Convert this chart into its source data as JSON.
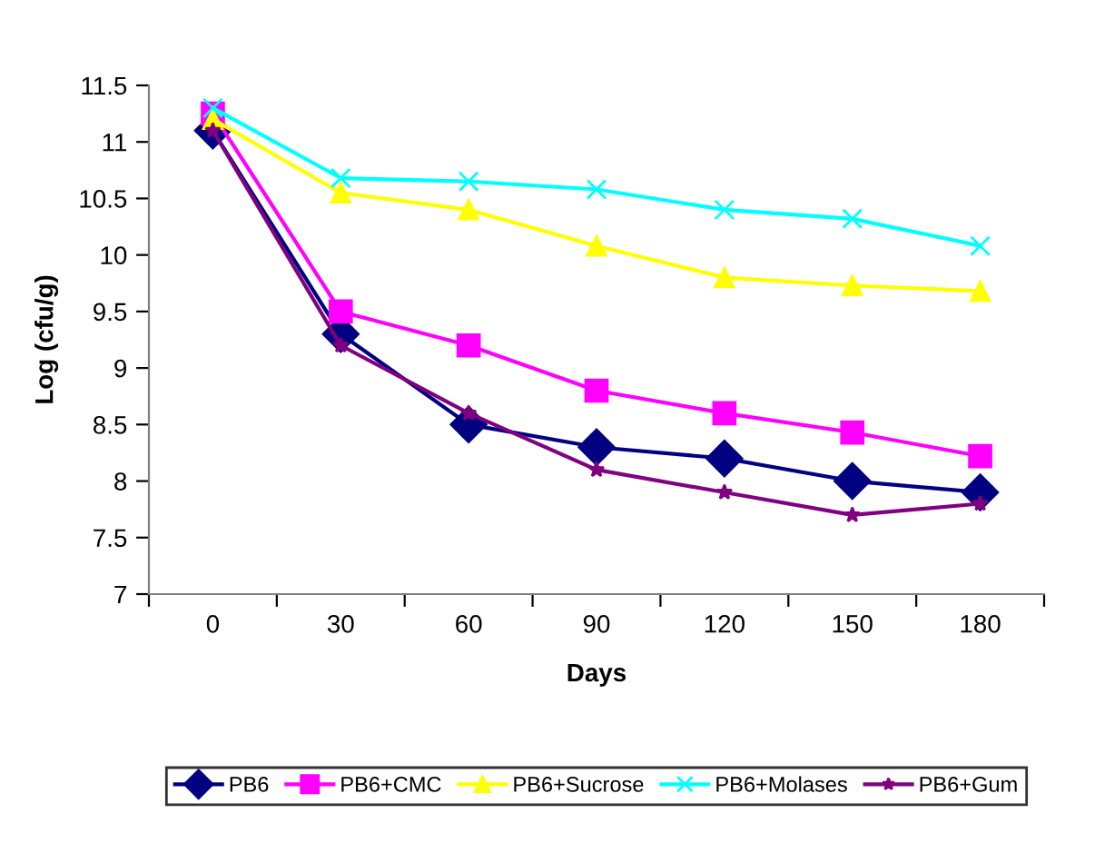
{
  "chart_data": {
    "type": "line",
    "xlabel": "Days",
    "ylabel": "Log (cfu/g)",
    "categories": [
      "0",
      "30",
      "60",
      "90",
      "120",
      "150",
      "180"
    ],
    "ylim": [
      7,
      11.5
    ],
    "yticks": [
      7,
      7.5,
      8,
      8.5,
      9,
      9.5,
      10,
      10.5,
      11,
      11.5
    ],
    "grid": false,
    "legend": "bottom",
    "series": [
      {
        "name": "PB6",
        "color": "#000080",
        "marker": "diamond",
        "values": [
          11.1,
          9.3,
          8.5,
          8.3,
          8.2,
          8.0,
          7.9
        ]
      },
      {
        "name": "PB6+CMC",
        "color": "#ff00ff",
        "marker": "square",
        "values": [
          11.25,
          9.5,
          9.2,
          8.8,
          8.6,
          8.43,
          8.22
        ]
      },
      {
        "name": "PB6+Sucrose",
        "color": "#ffff00",
        "marker": "triangle",
        "values": [
          11.2,
          10.55,
          10.4,
          10.08,
          9.8,
          9.73,
          9.68
        ]
      },
      {
        "name": "PB6+Molases",
        "color": "#00ffff",
        "marker": "cross",
        "values": [
          11.3,
          10.68,
          10.65,
          10.58,
          10.4,
          10.32,
          10.08
        ]
      },
      {
        "name": "PB6+Gum",
        "color": "#800080",
        "marker": "star",
        "values": [
          11.1,
          9.2,
          8.6,
          8.1,
          7.9,
          7.7,
          7.8
        ]
      }
    ]
  }
}
